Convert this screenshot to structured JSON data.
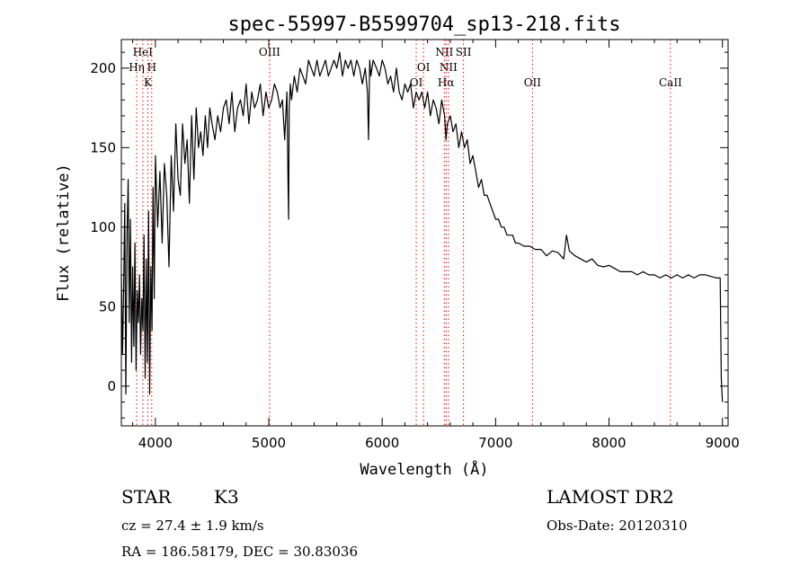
{
  "chart_data": {
    "type": "line",
    "title": "spec-55997-B5599704_sp13-218.fits",
    "xlabel": "Wavelength (Å)",
    "ylabel": "Flux (relative)",
    "xlim": [
      3700,
      9050
    ],
    "ylim": [
      -25,
      218
    ],
    "xticks": [
      4000,
      5000,
      6000,
      7000,
      8000,
      9000
    ],
    "yticks": [
      0,
      50,
      100,
      150,
      200
    ],
    "grid": false,
    "line_color": "#000000",
    "marker_color": "#ff0000",
    "series": [
      {
        "x": [
          3700,
          3710,
          3720,
          3730,
          3740,
          3750,
          3760,
          3770,
          3780,
          3790,
          3800,
          3810,
          3820,
          3830,
          3840,
          3850,
          3860,
          3870,
          3880,
          3890,
          3900,
          3910,
          3920,
          3930,
          3940,
          3950,
          3960,
          3970,
          3980,
          3990,
          4000,
          4020,
          4040,
          4060,
          4080,
          4100,
          4120,
          4140,
          4160,
          4180,
          4200,
          4220,
          4240,
          4260,
          4280,
          4300,
          4320,
          4340,
          4360,
          4380,
          4400,
          4420,
          4440,
          4460,
          4480,
          4500,
          4525,
          4550,
          4575,
          4600,
          4625,
          4650,
          4675,
          4700,
          4725,
          4750,
          4775,
          4800,
          4825,
          4850,
          4875,
          4900,
          4925,
          4950,
          4975,
          5000,
          5025,
          5050,
          5075,
          5100,
          5120,
          5140,
          5160,
          5170,
          5175,
          5180,
          5190,
          5200,
          5225,
          5250,
          5275,
          5300,
          5325,
          5350,
          5375,
          5400,
          5425,
          5450,
          5475,
          5500,
          5525,
          5550,
          5575,
          5600,
          5625,
          5650,
          5675,
          5700,
          5725,
          5750,
          5775,
          5800,
          5825,
          5850,
          5870,
          5880,
          5890,
          5900,
          5920,
          5950,
          5975,
          6000,
          6025,
          6050,
          6075,
          6100,
          6125,
          6150,
          6175,
          6200,
          6225,
          6250,
          6275,
          6300,
          6325,
          6350,
          6375,
          6400,
          6425,
          6450,
          6475,
          6500,
          6525,
          6550,
          6563,
          6575,
          6600,
          6625,
          6650,
          6675,
          6700,
          6725,
          6750,
          6775,
          6800,
          6825,
          6850,
          6875,
          6900,
          6925,
          6950,
          6975,
          7000,
          7025,
          7050,
          7075,
          7100,
          7125,
          7150,
          7175,
          7200,
          7250,
          7300,
          7350,
          7400,
          7450,
          7500,
          7550,
          7600,
          7625,
          7650,
          7700,
          7750,
          7800,
          7850,
          7900,
          7950,
          8000,
          8050,
          8100,
          8150,
          8200,
          8250,
          8300,
          8350,
          8400,
          8450,
          8500,
          8550,
          8600,
          8650,
          8700,
          8750,
          8800,
          8850,
          8900,
          8950,
          8980,
          8990,
          9000
        ],
        "y": [
          70,
          20,
          60,
          115,
          -5,
          95,
          130,
          40,
          105,
          15,
          75,
          25,
          90,
          10,
          60,
          40,
          70,
          20,
          55,
          35,
          95,
          5,
          80,
          15,
          110,
          -5,
          75,
          35,
          125,
          55,
          145,
          100,
          135,
          90,
          140,
          120,
          75,
          145,
          110,
          165,
          130,
          120,
          165,
          140,
          155,
          115,
          170,
          130,
          175,
          150,
          160,
          145,
          170,
          150,
          175,
          165,
          155,
          170,
          160,
          175,
          180,
          165,
          185,
          160,
          175,
          180,
          170,
          190,
          165,
          185,
          175,
          180,
          190,
          170,
          185,
          175,
          180,
          190,
          185,
          175,
          180,
          155,
          185,
          125,
          105,
          175,
          190,
          180,
          195,
          185,
          200,
          195,
          190,
          205,
          200,
          195,
          205,
          195,
          200,
          205,
          195,
          200,
          205,
          200,
          210,
          195,
          205,
          200,
          205,
          195,
          205,
          200,
          190,
          200,
          185,
          155,
          205,
          195,
          205,
          200,
          195,
          205,
          200,
          190,
          195,
          185,
          200,
          185,
          180,
          190,
          185,
          190,
          175,
          185,
          180,
          185,
          175,
          185,
          170,
          180,
          175,
          165,
          180,
          170,
          155,
          165,
          170,
          160,
          165,
          150,
          160,
          150,
          155,
          140,
          145,
          135,
          125,
          130,
          120,
          120,
          115,
          110,
          105,
          105,
          100,
          100,
          95,
          95,
          95,
          90,
          90,
          88,
          88,
          86,
          86,
          82,
          85,
          84,
          80,
          95,
          85,
          82,
          80,
          78,
          80,
          76,
          75,
          76,
          74,
          72,
          72,
          72,
          70,
          72,
          70,
          70,
          68,
          70,
          68,
          70,
          68,
          70,
          68,
          70,
          70,
          69,
          68,
          68,
          5,
          -10
        ]
      }
    ],
    "line_markers": [
      {
        "label": "HeI",
        "x": 3889,
        "tier": 0
      },
      {
        "label": "Hη",
        "x": 3835,
        "tier": 1
      },
      {
        "label": "H",
        "x": 3968,
        "tier": 1
      },
      {
        "label": "K",
        "x": 3934,
        "tier": 2
      },
      {
        "label": "OIII",
        "x": 5007,
        "tier": 0
      },
      {
        "label": "NII",
        "x": 6548,
        "tier": 0
      },
      {
        "label": "SII",
        "x": 6717,
        "tier": 0
      },
      {
        "label": "OI",
        "x": 6364,
        "tier": 1
      },
      {
        "label": "NII",
        "x": 6584,
        "tier": 1
      },
      {
        "label": "OI",
        "x": 6300,
        "tier": 2
      },
      {
        "label": "Hα",
        "x": 6563,
        "tier": 2
      },
      {
        "label": "OII",
        "x": 7325,
        "tier": 2
      },
      {
        "label": "CaII",
        "x": 8542,
        "tier": 2
      }
    ]
  },
  "footer": {
    "class_label": "STAR",
    "subclass": "K3",
    "survey": "LAMOST DR2",
    "cz": "cz = 27.4 ± 1.9 km/s",
    "obs_date": "Obs-Date: 20120310",
    "coords": "RA = 186.58179, DEC =  30.83036"
  }
}
